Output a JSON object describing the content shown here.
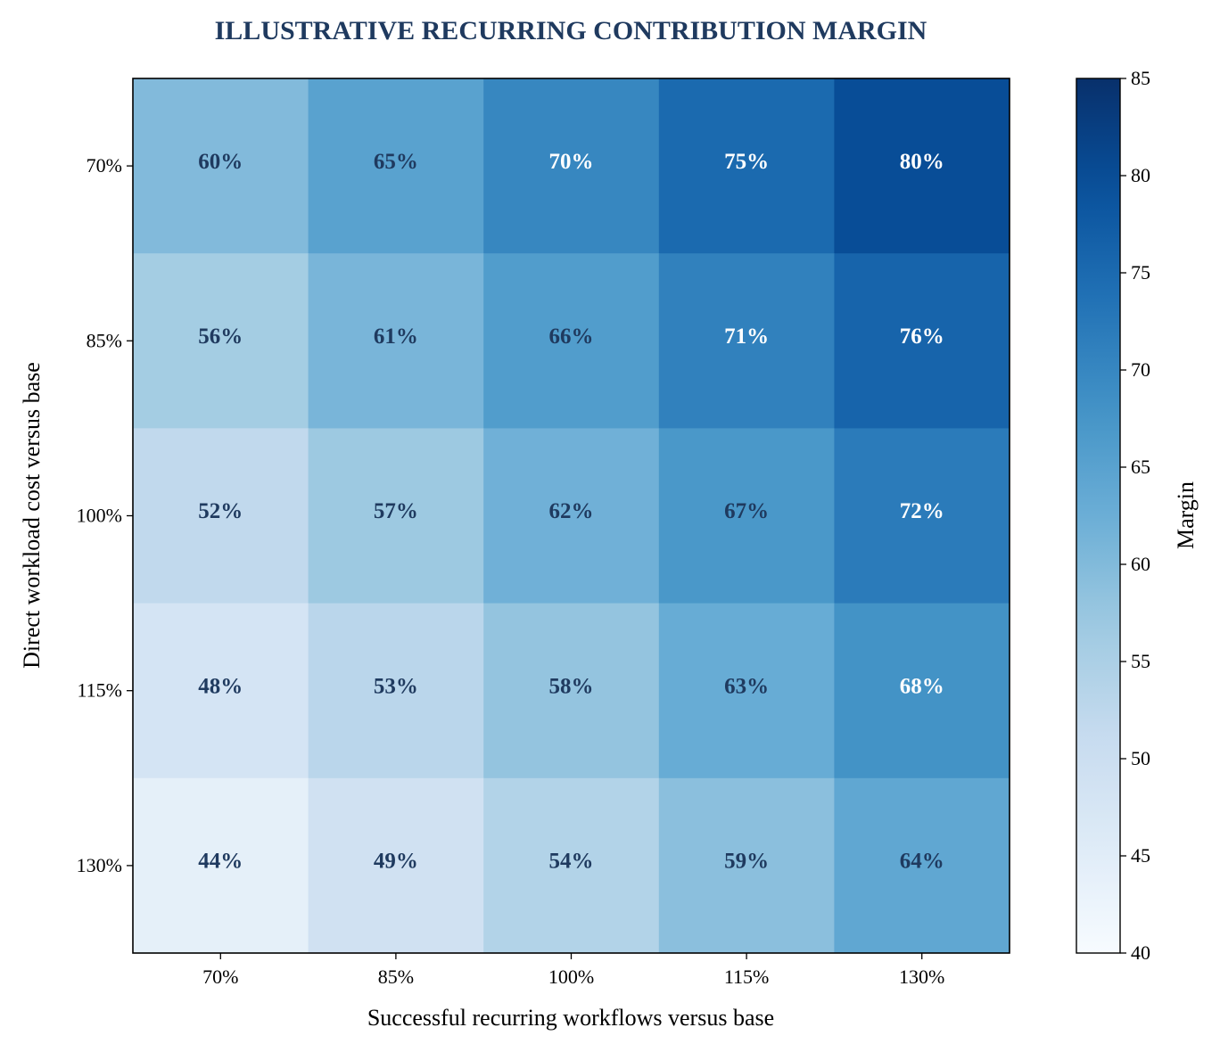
{
  "chart_data": {
    "type": "heatmap",
    "title": "ILLUSTRATIVE RECURRING CONTRIBUTION MARGIN",
    "xlabel": "Successful recurring workflows versus base",
    "ylabel": "Direct workload cost versus base",
    "x_categories": [
      "70%",
      "85%",
      "100%",
      "115%",
      "130%"
    ],
    "y_categories": [
      "70%",
      "85%",
      "100%",
      "115%",
      "130%"
    ],
    "values": [
      [
        60,
        65,
        70,
        75,
        80
      ],
      [
        56,
        61,
        66,
        71,
        76
      ],
      [
        52,
        57,
        62,
        67,
        72
      ],
      [
        48,
        53,
        58,
        63,
        68
      ],
      [
        44,
        49,
        54,
        59,
        64
      ]
    ],
    "value_suffix": "%",
    "colorbar": {
      "label": "Margin",
      "vmin": 40,
      "vmax": 85,
      "ticks": [
        40,
        45,
        50,
        55,
        60,
        65,
        70,
        75,
        80,
        85
      ],
      "colormap": "Blues"
    },
    "colors": {
      "title": "#1f3a5f",
      "dark_text": "#1f3a5f",
      "light_text": "#ffffff"
    }
  }
}
